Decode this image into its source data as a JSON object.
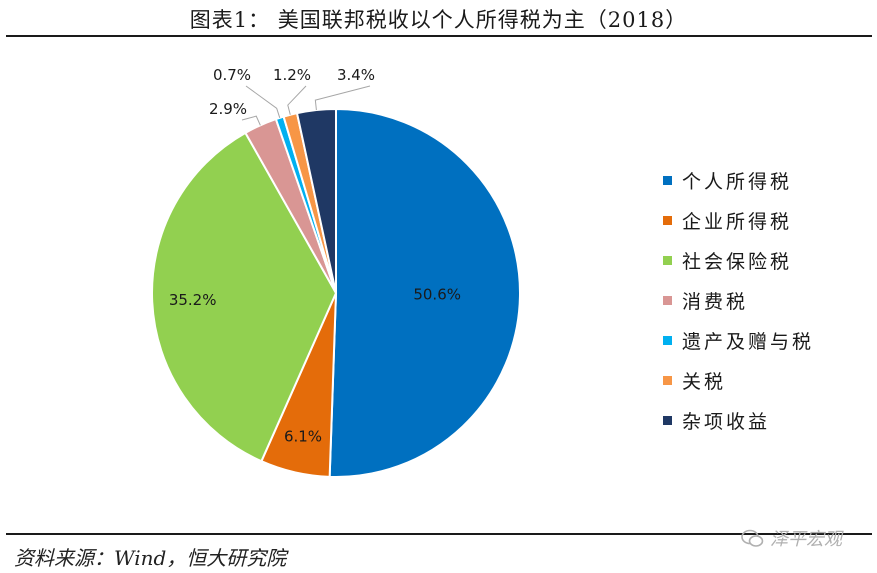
{
  "header": {
    "title": "图表1：  美国联邦税收以个人所得税为主（2018）"
  },
  "footer": {
    "source": "资料来源：Wind，恒大研究院",
    "watermark": "泽平宏观"
  },
  "chart_data": {
    "type": "pie",
    "title": "图表1：  美国联邦税收以个人所得税为主（2018）",
    "start_angle_deg": 0,
    "direction": "clockwise",
    "legend_position": "right",
    "slices": [
      {
        "name": "个人所得税",
        "value": 50.6,
        "label": "50.6%",
        "color": "#0070C0"
      },
      {
        "name": "企业所得税",
        "value": 6.1,
        "label": "6.1%",
        "color": "#E46C0A"
      },
      {
        "name": "社会保险税",
        "value": 35.2,
        "label": "35.2%",
        "color": "#92D050"
      },
      {
        "name": "消费税",
        "value": 2.9,
        "label": "2.9%",
        "color": "#D99694"
      },
      {
        "name": "遗产及赠与税",
        "value": 0.7,
        "label": "0.7%",
        "color": "#00B0F0"
      },
      {
        "name": "关税",
        "value": 1.2,
        "label": "1.2%",
        "color": "#F79646"
      },
      {
        "name": "杂项收益",
        "value": 3.4,
        "label": "3.4%",
        "color": "#1F3864"
      }
    ]
  }
}
